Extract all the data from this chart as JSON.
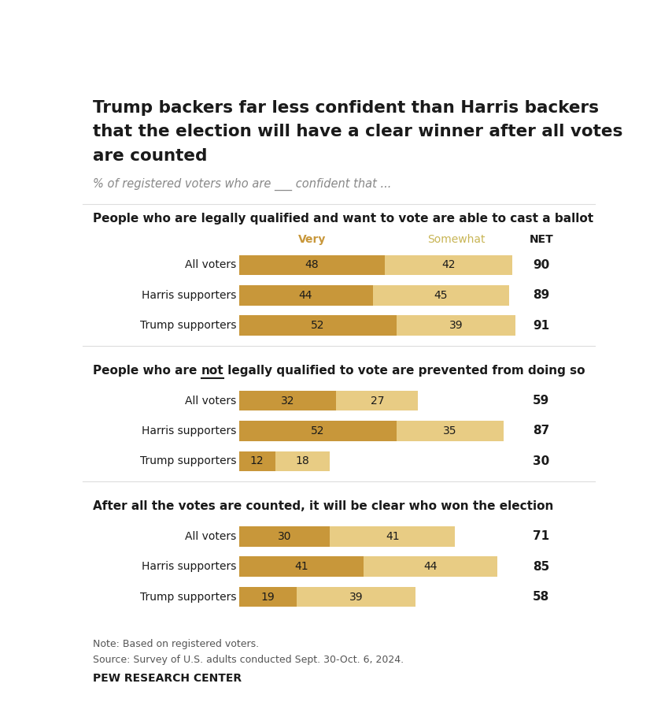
{
  "title_lines": [
    "Trump backers far less confident than Harris backers",
    "that the election will have a clear winner after all votes",
    "are counted"
  ],
  "subtitle": "% of registered voters who are ___ confident that ...",
  "color_very": "#C8973A",
  "color_somewhat": "#E8CC84",
  "background_color": "#FFFFFF",
  "sections": [
    {
      "heading": "People who are legally qualified and want to vote are able to cast a ballot",
      "heading_underline": false,
      "show_col_headers": true,
      "rows": [
        {
          "label": "All voters",
          "very": 48,
          "somewhat": 42,
          "net": 90
        },
        {
          "label": "Harris supporters",
          "very": 44,
          "somewhat": 45,
          "net": 89
        },
        {
          "label": "Trump supporters",
          "very": 52,
          "somewhat": 39,
          "net": 91
        }
      ]
    },
    {
      "heading": "People who are not legally qualified to vote are prevented from doing so",
      "heading_underline": true,
      "underline_word": "not",
      "show_col_headers": false,
      "rows": [
        {
          "label": "All voters",
          "very": 32,
          "somewhat": 27,
          "net": 59
        },
        {
          "label": "Harris supporters",
          "very": 52,
          "somewhat": 35,
          "net": 87
        },
        {
          "label": "Trump supporters",
          "very": 12,
          "somewhat": 18,
          "net": 30
        }
      ]
    },
    {
      "heading": "After all the votes are counted, it will be clear who won the election",
      "heading_underline": false,
      "show_col_headers": false,
      "rows": [
        {
          "label": "All voters",
          "very": 30,
          "somewhat": 41,
          "net": 71
        },
        {
          "label": "Harris supporters",
          "very": 41,
          "somewhat": 44,
          "net": 85
        },
        {
          "label": "Trump supporters",
          "very": 19,
          "somewhat": 39,
          "net": 58
        }
      ]
    }
  ],
  "col_header_very": "Very",
  "col_header_somewhat": "Somewhat",
  "col_header_net": "NET",
  "note": "Note: Based on registered voters.",
  "source": "Source: Survey of U.S. adults conducted Sept. 30-Oct. 6, 2024.",
  "branding": "PEW RESEARCH CENTER",
  "max_bar_val": 91
}
